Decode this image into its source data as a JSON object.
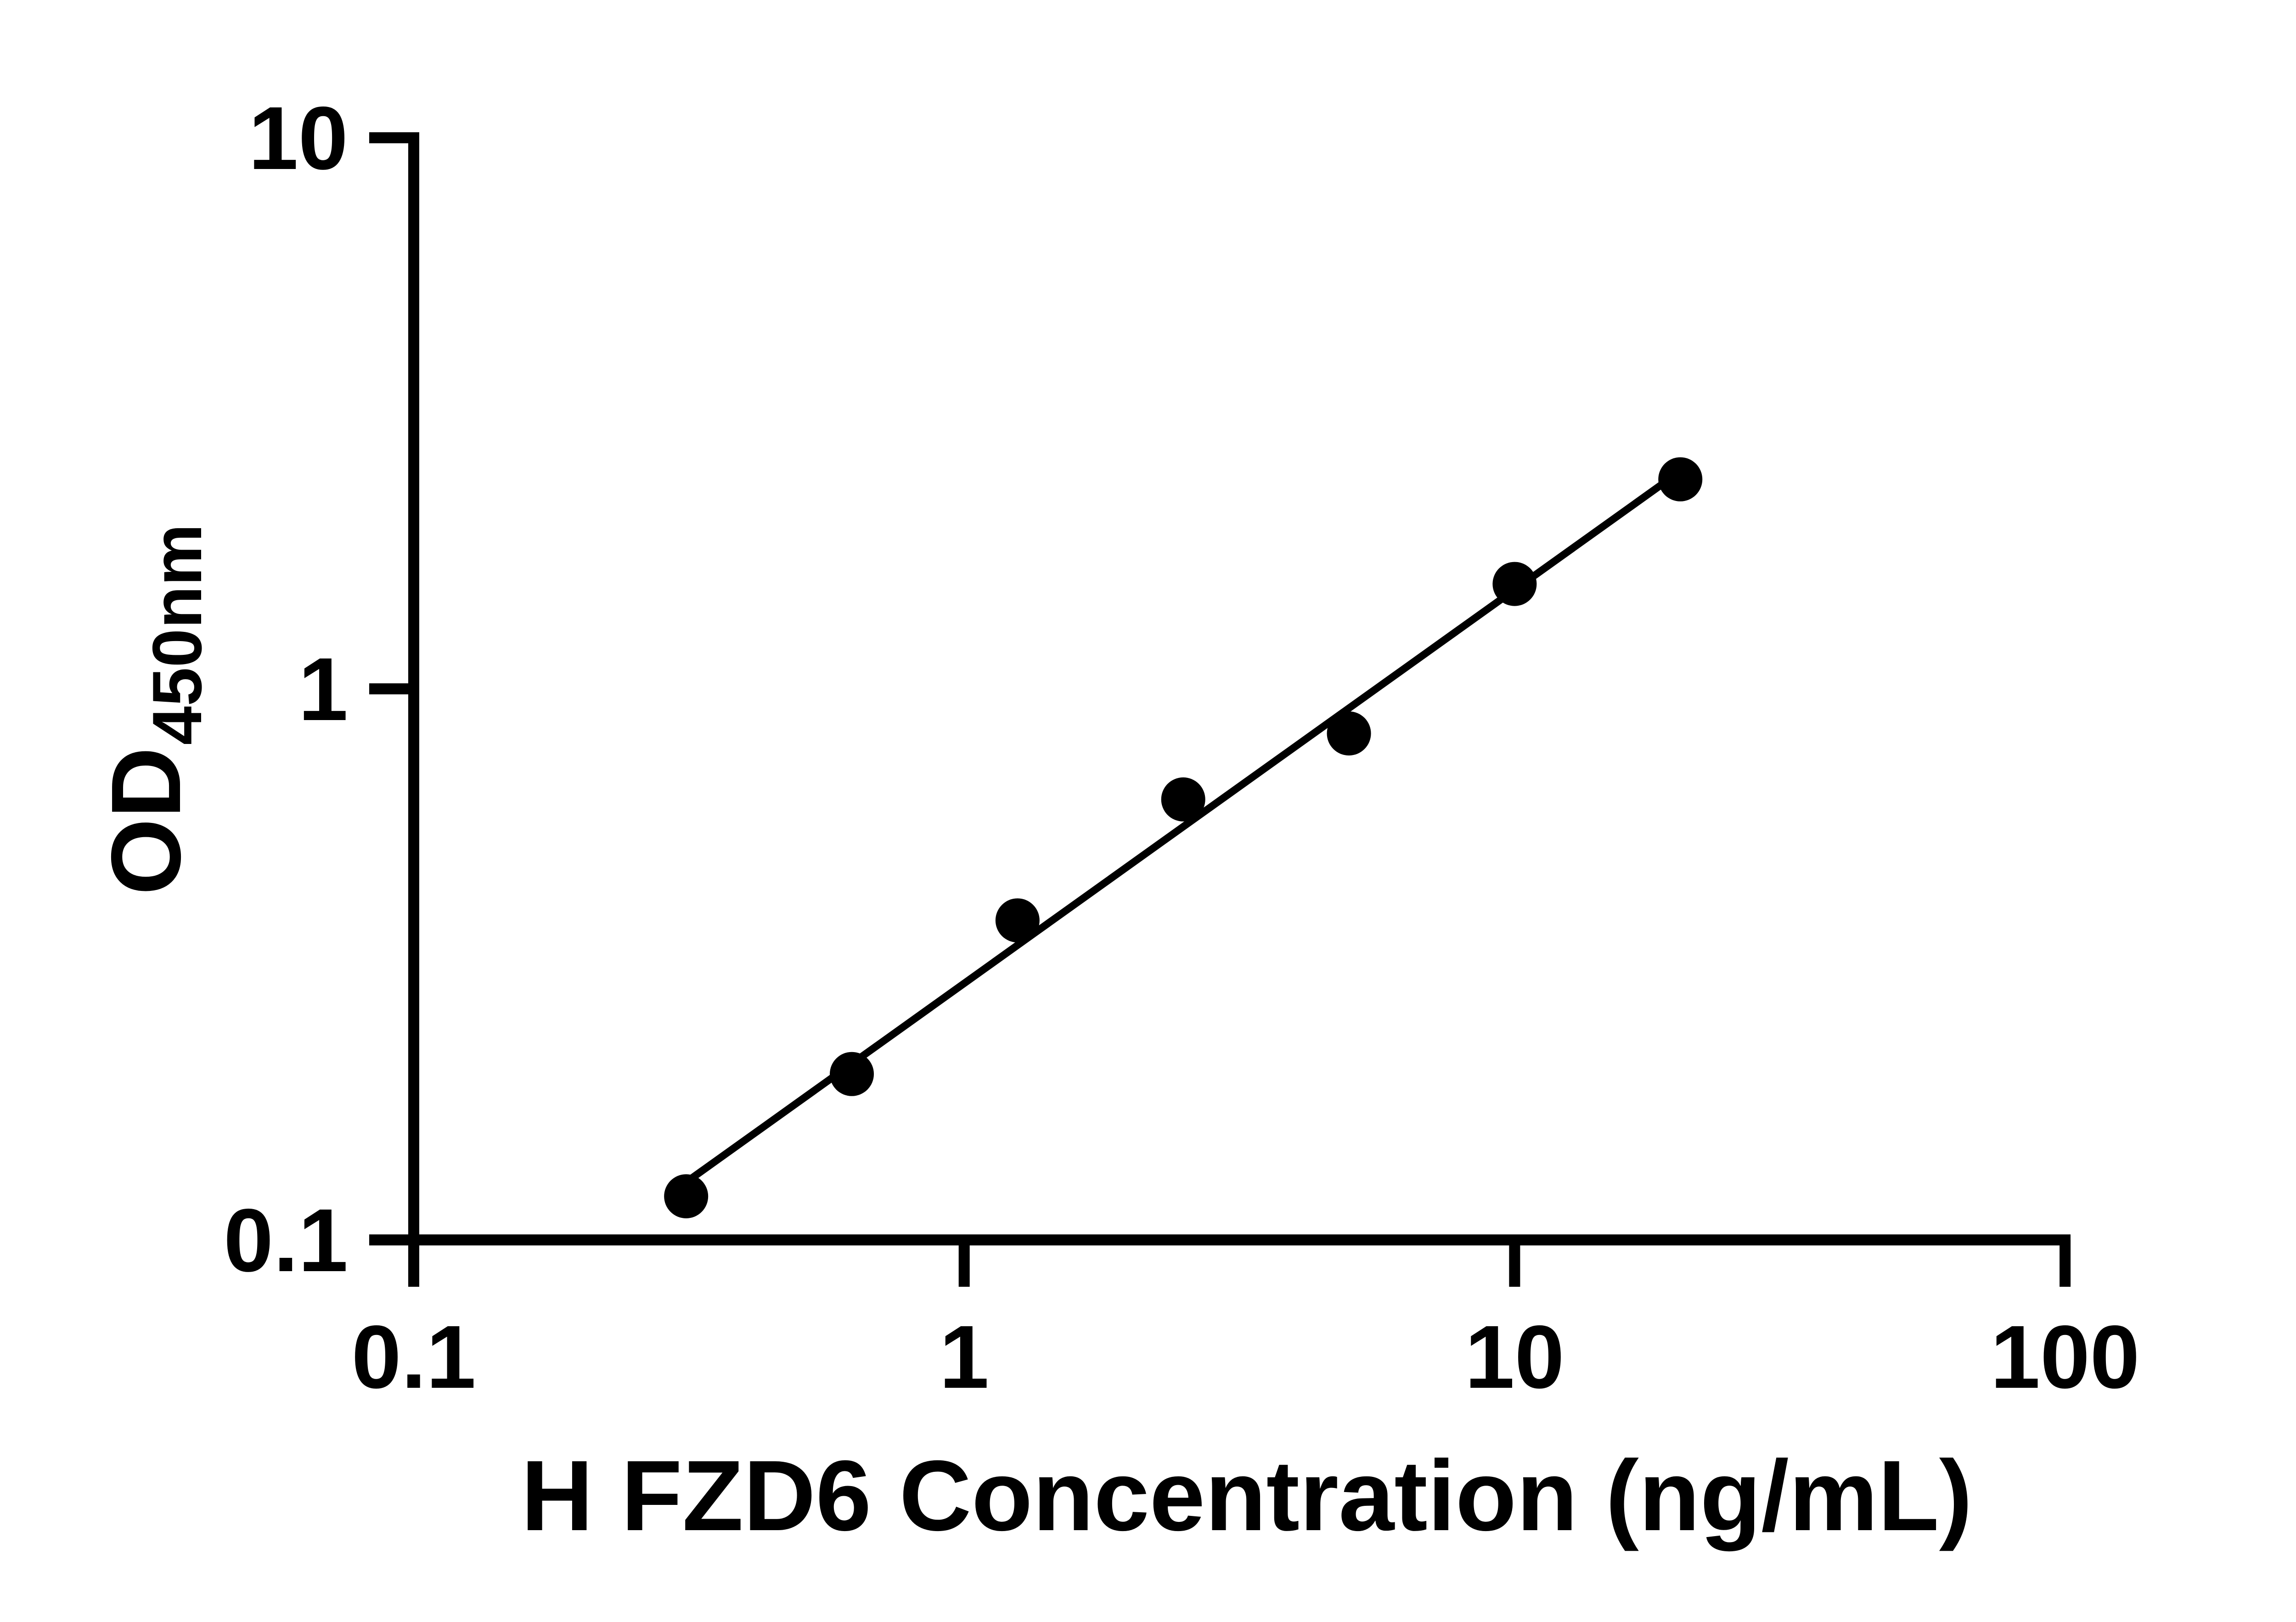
{
  "chart_data": {
    "type": "scatter",
    "title": "",
    "xlabel": "H FZD6 Concentration (ng/mL)",
    "ylabel": "OD",
    "ylabel_subscript": "450nm",
    "x_scale": "log",
    "y_scale": "log",
    "xlim": [
      0.1,
      100
    ],
    "ylim": [
      0.1,
      10
    ],
    "grid": false,
    "legend_position": "none",
    "marker_color": "#000000",
    "line_color": "#000000",
    "background_color": "#ffffff",
    "fit_line": "linear-in-log-log",
    "x": [
      0.3125,
      0.625,
      1.25,
      2.5,
      5,
      10,
      20
    ],
    "y": [
      0.12,
      0.2,
      0.38,
      0.63,
      0.83,
      1.55,
      2.4
    ],
    "x_ticks": [
      {
        "value": 0.1,
        "label": "0.1"
      },
      {
        "value": 1,
        "label": "1"
      },
      {
        "value": 10,
        "label": "10"
      },
      {
        "value": 100,
        "label": "100"
      }
    ],
    "y_ticks": [
      {
        "value": 0.1,
        "label": "0.1"
      },
      {
        "value": 1,
        "label": "1"
      },
      {
        "value": 10,
        "label": "10"
      }
    ]
  }
}
